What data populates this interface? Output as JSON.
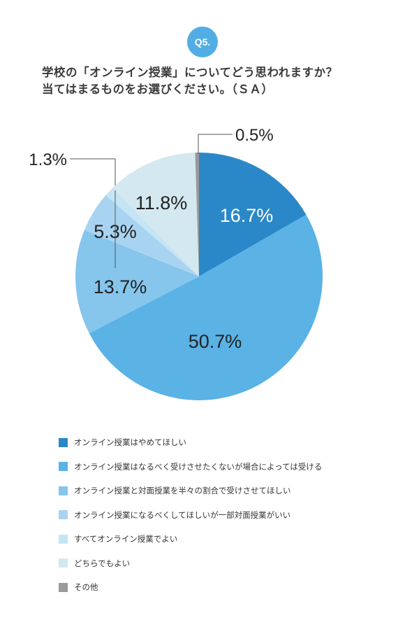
{
  "question": {
    "badge": "Q5.",
    "line1": "学校の「オンライン授業」についてどう思われますか？",
    "line2": "当てはまるものをお選びください。（ＳＡ）"
  },
  "chart_data": {
    "type": "pie",
    "start": "12 o'clock, clockwise",
    "slices": [
      {
        "label": "オンライン授業はやめてほしい",
        "value": 16.7,
        "display": "16.7%",
        "color": "#2b88c8"
      },
      {
        "label": "オンライン授業はなるべく受けさせたくないが場合によっては受ける",
        "value": 50.7,
        "display": "50.7%",
        "color": "#5ab2e5"
      },
      {
        "label": "オンライン授業と対面授業を半々の割合で受けさせてほしい",
        "value": 13.7,
        "display": "13.7%",
        "color": "#86c5ec"
      },
      {
        "label": "オンライン授業になるべくしてほしいが一部対面授業がいい",
        "value": 5.3,
        "display": "5.3%",
        "color": "#a9d4f1"
      },
      {
        "label": "すべてオンライン授業でよい",
        "value": 1.3,
        "display": "1.3%",
        "color": "#c5e5f4"
      },
      {
        "label": "どちらでもよい",
        "value": 11.8,
        "display": "11.8%",
        "color": "#d3e8ef"
      },
      {
        "label": "その他",
        "value": 0.5,
        "display": "0.5%",
        "color": "#9a9a9a"
      }
    ]
  }
}
